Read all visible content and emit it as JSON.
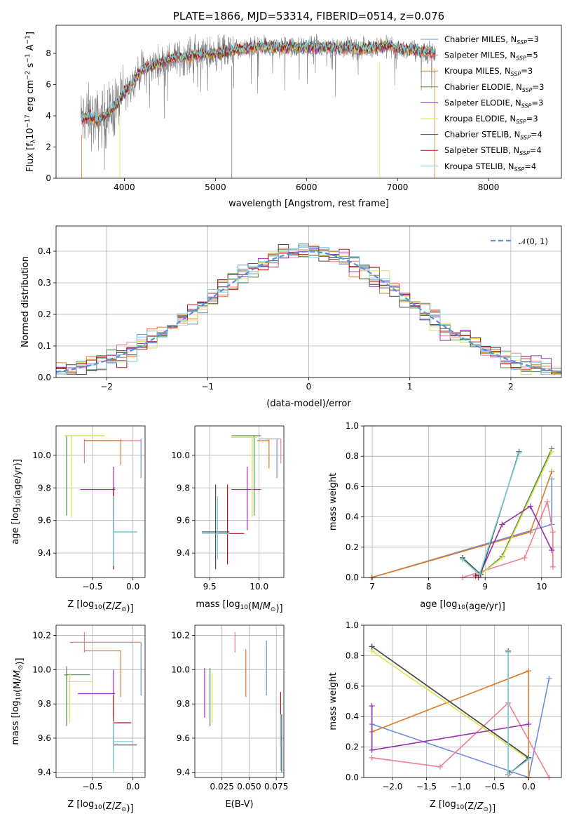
{
  "colors": {
    "chabrier_miles": "#6a8fd8",
    "salpeter_miles": "#ef7f8e",
    "kroupa_miles": "#e07a28",
    "chabrier_elodie": "#508a50",
    "salpeter_elodie": "#9a2fb0",
    "kroupa_elodie": "#dde34b",
    "chabrier_stelib": "#4a4a4a",
    "salpeter_stelib": "#b01818",
    "kroupa_stelib": "#78d0d8",
    "normal": "#5b8fd8",
    "data_spectrum": "#7f7f7f"
  },
  "chart_data": [
    {
      "id": "spectrum",
      "type": "line",
      "title": "PLATE=1866, MJD=53314, FIBERID=0514, z=0.076",
      "xlabel": "wavelength [Angstrom, rest frame]",
      "ylabel_parts": [
        "Flux [f",
        "λ",
        "10",
        "−17",
        " erg cm",
        "−2",
        " s",
        "−1",
        " A",
        "−1",
        "]"
      ],
      "xlim": [
        3250,
        8800
      ],
      "ylim": [
        0,
        9.8
      ],
      "xticks": [
        4000,
        5000,
        6000,
        7000,
        8000
      ],
      "yticks": [
        0,
        2,
        4,
        6,
        8
      ],
      "continuum_x": [
        3550,
        3600,
        3700,
        3800,
        3900,
        4000,
        4200,
        4500,
        4800,
        5000,
        5200,
        5500,
        5800,
        6000,
        6300,
        6600,
        6900,
        7000,
        7200,
        7400
      ],
      "continuum_y": [
        3.8,
        4.0,
        3.7,
        4.1,
        4.6,
        5.5,
        7.0,
        7.6,
        7.9,
        8.0,
        8.2,
        8.4,
        8.4,
        8.4,
        8.4,
        8.3,
        8.5,
        8.3,
        8.2,
        8.0
      ],
      "series": [
        {
          "name": "Chabrier MILES",
          "n_ssp": "3",
          "color_key": "chabrier_miles"
        },
        {
          "name": "Salpeter MILES",
          "n_ssp": "5",
          "color_key": "salpeter_miles"
        },
        {
          "name": "Kroupa MILES",
          "n_ssp": "3",
          "color_key": "kroupa_miles"
        },
        {
          "name": "Chabrier ELODIE",
          "n_ssp": "3",
          "color_key": "chabrier_elodie"
        },
        {
          "name": "Salpeter ELODIE",
          "n_ssp": "3",
          "color_key": "salpeter_elodie"
        },
        {
          "name": "Kroupa ELODIE",
          "n_ssp": "3",
          "color_key": "kroupa_elodie"
        },
        {
          "name": "Chabrier STELIB",
          "n_ssp": "4",
          "color_key": "chabrier_stelib"
        },
        {
          "name": "Salpeter STELIB",
          "n_ssp": "4",
          "color_key": "salpeter_stelib"
        },
        {
          "name": "Kroupa STELIB",
          "n_ssp": "4",
          "color_key": "kroupa_stelib"
        }
      ],
      "legend_position": "right",
      "grid": false
    },
    {
      "id": "residuals",
      "type": "step",
      "xlabel": "(data-model)/error",
      "ylabel": "Normed distribution",
      "xlim": [
        -2.5,
        2.5
      ],
      "ylim": [
        0,
        0.48
      ],
      "xticks": [
        -2,
        -1,
        0,
        1,
        2
      ],
      "xtick_labels": [
        "−2",
        "−1",
        "0",
        "1",
        "2"
      ],
      "yticks": [
        0.0,
        0.1,
        0.2,
        0.3,
        0.4
      ],
      "ytick_labels": [
        "0.0",
        "0.1",
        "0.2",
        "0.3",
        "0.4"
      ],
      "bin_width": 0.1,
      "gaussian_label": "𝒩(0, 1)",
      "legend_position": "top-right",
      "grid": true
    },
    {
      "id": "age_vs_Z",
      "type": "errorbar",
      "xlabel": "Z [log10(Z/Z⊙)]",
      "ylabel": "age  [log10(age/yr)]",
      "xlim": [
        -0.95,
        0.15
      ],
      "ylim": [
        9.25,
        10.18
      ],
      "xticks": [
        -0.5,
        0.0
      ],
      "xtick_labels": [
        "−0.5",
        "0.0"
      ],
      "yticks": [
        9.4,
        9.6,
        9.8,
        10.0
      ],
      "ytick_labels": [
        "9.4",
        "9.6",
        "9.8",
        "10.0"
      ],
      "grid": true,
      "points": [
        {
          "key": "chabrier_miles",
          "x": 0.1,
          "y": 10.09,
          "xl": 0.1,
          "xh": 0.1,
          "yl": 9.86,
          "yh": 10.1
        },
        {
          "key": "salpeter_miles",
          "x": -0.6,
          "y": 10.09,
          "xl": -0.6,
          "xh": 0.1,
          "yl": 9.95,
          "yh": 10.1
        },
        {
          "key": "kroupa_miles",
          "x": -0.15,
          "y": 10.09,
          "xl": -0.6,
          "xh": -0.15,
          "yl": 9.94,
          "yh": 10.1
        },
        {
          "key": "chabrier_elodie",
          "x": -0.82,
          "y": 10.12,
          "xl": -0.85,
          "xh": -0.35,
          "yl": 9.63,
          "yh": 10.12
        },
        {
          "key": "salpeter_elodie",
          "x": -0.24,
          "y": 9.79,
          "xl": -0.65,
          "xh": -0.22,
          "yl": 9.54,
          "yh": 9.93
        },
        {
          "key": "kroupa_elodie",
          "x": -0.76,
          "y": 10.12,
          "xl": -0.85,
          "xh": -0.35,
          "yl": 9.62,
          "yh": 10.12
        },
        {
          "key": "chabrier_stelib",
          "x": -0.24,
          "y": 9.53,
          "xl": -0.24,
          "xh": 0.05,
          "yl": 9.3,
          "yh": 9.8
        },
        {
          "key": "salpeter_stelib",
          "x": -0.24,
          "y": 9.8,
          "xl": -0.24,
          "xh": -0.22,
          "yl": 9.3,
          "yh": 9.8
        },
        {
          "key": "kroupa_stelib",
          "x": -0.24,
          "y": 9.53,
          "xl": -0.24,
          "xh": 0.05,
          "yl": 9.32,
          "yh": 9.75
        }
      ]
    },
    {
      "id": "age_vs_mass",
      "type": "errorbar",
      "xlabel": "mass [log10(M/M⊙)]",
      "xlim": [
        9.35,
        10.25
      ],
      "ylim": [
        9.25,
        10.18
      ],
      "xticks": [
        9.5,
        10.0
      ],
      "xtick_labels": [
        "9.5",
        "10.0"
      ],
      "yticks": [
        9.4,
        9.6,
        9.8,
        10.0
      ],
      "ytick_labels": [
        "9.4",
        "9.6",
        "9.8",
        "10.0"
      ],
      "grid": true,
      "points": [
        {
          "key": "chabrier_miles",
          "x": 10.18,
          "y": 10.1,
          "xl": 10.18,
          "xh": 10.18,
          "yl": 9.86,
          "yh": 10.1
        },
        {
          "key": "salpeter_miles",
          "x": 10.22,
          "y": 10.1,
          "xl": 10.0,
          "xh": 10.22,
          "yl": 9.95,
          "yh": 10.1
        },
        {
          "key": "kroupa_miles",
          "x": 10.1,
          "y": 10.09,
          "xl": 9.98,
          "xh": 10.1,
          "yl": 9.92,
          "yh": 10.1
        },
        {
          "key": "chabrier_elodie",
          "x": 9.95,
          "y": 10.12,
          "xl": 9.72,
          "xh": 10.02,
          "yl": 9.63,
          "yh": 10.12
        },
        {
          "key": "salpeter_elodie",
          "x": 9.88,
          "y": 9.79,
          "xl": 9.72,
          "xh": 10.02,
          "yl": 9.54,
          "yh": 9.93
        },
        {
          "key": "kroupa_elodie",
          "x": 9.93,
          "y": 10.11,
          "xl": 9.72,
          "xh": 9.98,
          "yl": 9.62,
          "yh": 10.11
        },
        {
          "key": "chabrier_stelib",
          "x": 9.56,
          "y": 9.53,
          "xl": 9.42,
          "xh": 9.7,
          "yl": 9.3,
          "yh": 9.82
        },
        {
          "key": "salpeter_stelib",
          "x": 9.68,
          "y": 9.52,
          "xl": 9.55,
          "xh": 9.85,
          "yl": 9.33,
          "yh": 9.82
        },
        {
          "key": "kroupa_stelib",
          "x": 9.58,
          "y": 9.52,
          "xl": 9.42,
          "xh": 9.7,
          "yl": 9.36,
          "yh": 9.75
        }
      ]
    },
    {
      "id": "weight_vs_age",
      "type": "line",
      "xlabel": "age  [log10(age/yr)]",
      "ylabel": "mass weight",
      "xlim": [
        6.85,
        10.35
      ],
      "ylim": [
        0,
        1.0
      ],
      "xticks": [
        7,
        8,
        9,
        10
      ],
      "xtick_labels": [
        "7",
        "8",
        "9",
        "10"
      ],
      "yticks": [
        0.0,
        0.2,
        0.4,
        0.6,
        0.8,
        1.0
      ],
      "ytick_labels": [
        "0.0",
        "0.2",
        "0.4",
        "0.6",
        "0.8",
        "1.0"
      ],
      "grid": true,
      "series": [
        {
          "key": "chabrier_miles",
          "x": [
            6.99,
            10.18,
            10.18
          ],
          "y": [
            0.0,
            0.35,
            0.65
          ]
        },
        {
          "key": "kroupa_miles",
          "x": [
            6.99,
            9.8,
            10.18
          ],
          "y": [
            0.0,
            0.3,
            0.7
          ]
        },
        {
          "key": "salpeter_miles",
          "x": [
            8.6,
            9.7,
            10.1,
            10.2,
            10.2
          ],
          "y": [
            0.0,
            0.13,
            0.5,
            0.3,
            0.07
          ]
        },
        {
          "key": "chabrier_elodie",
          "x": [
            8.6,
            8.92,
            9.3,
            10.18
          ],
          "y": [
            0.13,
            0.02,
            0.14,
            0.85
          ]
        },
        {
          "key": "kroupa_elodie",
          "x": [
            8.6,
            8.92,
            9.3,
            10.18
          ],
          "y": [
            0.12,
            0.02,
            0.13,
            0.83
          ]
        },
        {
          "key": "salpeter_elodie",
          "x": [
            8.88,
            9.3,
            9.8,
            10.18
          ],
          "y": [
            0.0,
            0.35,
            0.47,
            0.18
          ]
        },
        {
          "key": "chabrier_stelib",
          "x": [
            8.6,
            8.92,
            9.6
          ],
          "y": [
            0.13,
            0.02,
            0.83
          ]
        },
        {
          "key": "salpeter_stelib",
          "x": [
            8.83,
            8.89
          ],
          "y": [
            0.01,
            0.02
          ]
        },
        {
          "key": "kroupa_stelib",
          "x": [
            8.6,
            8.9,
            9.6
          ],
          "y": [
            0.12,
            0.02,
            0.82
          ]
        }
      ]
    },
    {
      "id": "mass_vs_Z",
      "type": "errorbar",
      "xlabel": "Z [log10(Z/Z⊙)]",
      "ylabel": "mass [log10(M/M⊙)]",
      "xlim": [
        -0.95,
        0.15
      ],
      "ylim": [
        9.37,
        10.26
      ],
      "xticks": [
        -0.5,
        0.0
      ],
      "xtick_labels": [
        "−0.5",
        "0.0"
      ],
      "yticks": [
        9.4,
        9.6,
        9.8,
        10.0,
        10.2
      ],
      "ytick_labels": [
        "9.4",
        "9.6",
        "9.8",
        "10.0",
        "10.2"
      ],
      "grid": true,
      "points": [
        {
          "key": "chabrier_miles",
          "x": 0.1,
          "y": 10.16,
          "xl": 0.1,
          "xh": 0.1,
          "yl": 9.85,
          "yh": 10.16
        },
        {
          "key": "salpeter_miles",
          "x": -0.6,
          "y": 10.16,
          "xl": -0.78,
          "xh": 0.1,
          "yl": 10.1,
          "yh": 10.22
        },
        {
          "key": "kroupa_miles",
          "x": -0.15,
          "y": 10.11,
          "xl": -0.6,
          "xh": -0.15,
          "yl": 9.84,
          "yh": 10.11
        },
        {
          "key": "chabrier_elodie",
          "x": -0.82,
          "y": 9.97,
          "xl": -0.85,
          "xh": -0.53,
          "yl": 9.67,
          "yh": 10.02
        },
        {
          "key": "salpeter_elodie",
          "x": -0.24,
          "y": 9.86,
          "xl": -0.68,
          "xh": -0.22,
          "yl": 9.72,
          "yh": 10.0
        },
        {
          "key": "kroupa_elodie",
          "x": -0.78,
          "y": 9.93,
          "xl": -0.8,
          "xh": -0.5,
          "yl": 9.69,
          "yh": 9.98
        },
        {
          "key": "chabrier_stelib",
          "x": -0.24,
          "y": 9.56,
          "xl": -0.24,
          "xh": 0.05,
          "yl": 9.42,
          "yh": 9.7
        },
        {
          "key": "salpeter_stelib",
          "x": -0.24,
          "y": 9.69,
          "xl": -0.24,
          "xh": -0.02,
          "yl": 9.55,
          "yh": 9.85
        },
        {
          "key": "kroupa_stelib",
          "x": -0.24,
          "y": 9.58,
          "xl": -0.24,
          "xh": 0.0,
          "yl": 9.4,
          "yh": 9.7
        }
      ]
    },
    {
      "id": "mass_vs_ebv",
      "type": "errorbar",
      "xlabel": "E(B-V)",
      "xlim": [
        0.0,
        0.082
      ],
      "ylim": [
        9.37,
        10.26
      ],
      "xticks": [
        0.025,
        0.05,
        0.075
      ],
      "xtick_labels": [
        "0.025",
        "0.050",
        "0.075"
      ],
      "yticks": [
        9.4,
        9.6,
        9.8,
        10.0,
        10.2
      ],
      "ytick_labels": [
        "9.4",
        "9.6",
        "9.8",
        "10.0",
        "10.2"
      ],
      "grid": true,
      "points": [
        {
          "key": "salpeter_elodie",
          "x": 0.009,
          "y": 9.86,
          "yl": 9.72,
          "yh": 10.01
        },
        {
          "key": "chabrier_elodie",
          "x": 0.014,
          "y": 9.84,
          "yl": 9.67,
          "yh": 10.01
        },
        {
          "key": "kroupa_elodie",
          "x": 0.016,
          "y": 9.84,
          "yl": 9.69,
          "yh": 9.98
        },
        {
          "key": "salpeter_miles",
          "x": 0.037,
          "y": 10.16,
          "yl": 10.1,
          "yh": 10.22
        },
        {
          "key": "kroupa_miles",
          "x": 0.047,
          "y": 9.98,
          "yl": 9.84,
          "yh": 10.12
        },
        {
          "key": "chabrier_miles",
          "x": 0.066,
          "y": 10.0,
          "yl": 9.85,
          "yh": 10.17
        },
        {
          "key": "salpeter_stelib",
          "x": 0.079,
          "y": 9.75,
          "yl": 9.55,
          "yh": 9.87
        },
        {
          "key": "chabrier_stelib",
          "x": 0.08,
          "y": 9.56,
          "yl": 9.4,
          "yh": 9.74
        },
        {
          "key": "kroupa_stelib",
          "x": 0.079,
          "y": 9.58,
          "yl": 9.41,
          "yh": 9.74
        }
      ]
    },
    {
      "id": "weight_vs_Z",
      "type": "line",
      "xlabel": "Z [log10(Z/Z⊙)]",
      "ylabel": "mass weight",
      "xlim": [
        -2.42,
        0.48
      ],
      "ylim": [
        0,
        1.0
      ],
      "xticks": [
        -2.0,
        -1.5,
        -1.0,
        -0.5,
        0.0
      ],
      "xtick_labels": [
        "−2.0",
        "−1.5",
        "−1.0",
        "−0.5",
        "0.0"
      ],
      "yticks": [
        0.0,
        0.2,
        0.4,
        0.6,
        0.8,
        1.0
      ],
      "ytick_labels": [
        "0.0",
        "0.2",
        "0.4",
        "0.6",
        "0.8",
        "1.0"
      ],
      "grid": true,
      "series": [
        {
          "key": "chabrier_miles",
          "x": [
            -2.3,
            0.0,
            0.0,
            0.3
          ],
          "y": [
            0.35,
            0.0,
            0.0,
            0.65
          ]
        },
        {
          "key": "kroupa_miles",
          "x": [
            -2.3,
            0.0,
            0.0
          ],
          "y": [
            0.3,
            0.7,
            0.0
          ]
        },
        {
          "key": "salpeter_miles",
          "x": [
            -2.3,
            -1.3,
            -0.3,
            0.3
          ],
          "y": [
            0.13,
            0.07,
            0.49,
            0.0
          ]
        },
        {
          "key": "chabrier_elodie",
          "x": [
            -2.3,
            0.0
          ],
          "y": [
            0.86,
            0.13
          ]
        },
        {
          "key": "kroupa_elodie",
          "x": [
            -2.3,
            0.0
          ],
          "y": [
            0.83,
            0.12
          ]
        },
        {
          "key": "salpeter_elodie",
          "x": [
            -2.3,
            -2.3,
            0.0
          ],
          "y": [
            0.47,
            0.18,
            0.35
          ]
        },
        {
          "key": "chabrier_stelib",
          "x": [
            -2.3,
            0.0,
            -0.3,
            -0.3
          ],
          "y": [
            0.86,
            0.13,
            0.02,
            0.83
          ]
        },
        {
          "key": "salpeter_stelib",
          "x": [
            -0.3,
            -0.28
          ],
          "y": [
            0.02,
            0.03
          ]
        },
        {
          "key": "kroupa_stelib",
          "x": [
            -0.3,
            -0.3,
            0.0
          ],
          "y": [
            0.82,
            0.02,
            0.12
          ]
        }
      ]
    }
  ]
}
